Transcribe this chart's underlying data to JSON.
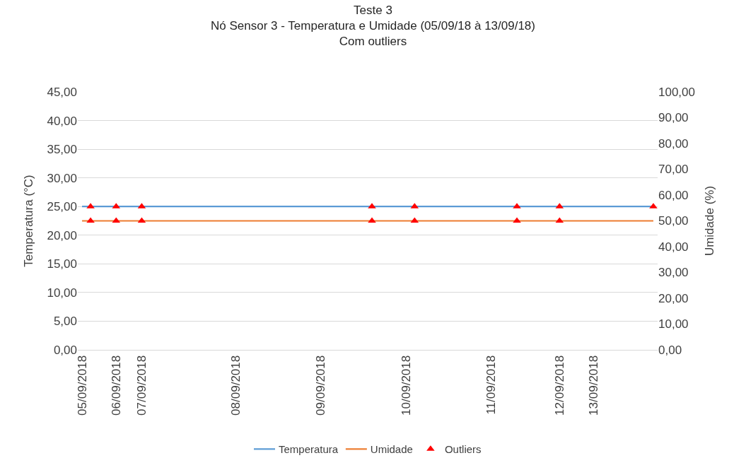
{
  "chart_data": {
    "type": "line",
    "title": "Teste 3\nNó Sensor 3 - Temperatura e Umidade (05/09/18 à 13/09/18)\nCom outliers",
    "ylabel": "Temperatura (°C)",
    "y2label": "Umidade (%)",
    "categories": [
      "05/09/2018",
      null,
      null,
      null,
      "06/09/2018",
      null,
      null,
      "07/09/2018",
      null,
      null,
      null,
      null,
      null,
      null,
      null,
      null,
      null,
      null,
      "08/09/2018",
      null,
      null,
      null,
      null,
      null,
      null,
      null,
      null,
      null,
      "09/09/2018",
      null,
      null,
      null,
      null,
      null,
      null,
      null,
      null,
      null,
      "10/09/2018",
      null,
      null,
      null,
      null,
      null,
      null,
      null,
      null,
      null,
      "11/09/2018",
      null,
      null,
      null,
      null,
      null,
      null,
      null,
      "12/09/2018",
      null,
      null,
      null,
      "13/09/2018",
      null,
      null,
      null,
      null,
      null,
      null,
      null
    ],
    "series": [
      {
        "name": "Temperatura",
        "color": "#5b9bd5",
        "line_style": "solid",
        "values": [
          25,
          25,
          25,
          25,
          25,
          25,
          25,
          25,
          25,
          25,
          25,
          25,
          25,
          25,
          25,
          25,
          25,
          25,
          25,
          25,
          25,
          25,
          25,
          25,
          25,
          25,
          25,
          25,
          25,
          25,
          25,
          25,
          25,
          25,
          25,
          25,
          25,
          25,
          25,
          25,
          25,
          25,
          25,
          25,
          25,
          25,
          25,
          25,
          25,
          25,
          25,
          25,
          25,
          25,
          25,
          25,
          25,
          25,
          25,
          25,
          25,
          25,
          25,
          25,
          25,
          25,
          25,
          25
        ]
      },
      {
        "name": "Umidade",
        "axis": "y2",
        "color": "#ed7d31",
        "line_style": "solid",
        "values": [
          50,
          50,
          50,
          50,
          50,
          50,
          50,
          50,
          50,
          50,
          50,
          50,
          50,
          50,
          50,
          50,
          50,
          50,
          50,
          50,
          50,
          50,
          50,
          50,
          50,
          50,
          50,
          50,
          50,
          50,
          50,
          50,
          50,
          50,
          50,
          50,
          50,
          50,
          50,
          50,
          50,
          50,
          50,
          50,
          50,
          50,
          50,
          50,
          50,
          50,
          50,
          50,
          50,
          50,
          50,
          50,
          50,
          50,
          50,
          50,
          50,
          50,
          50,
          50,
          50,
          50,
          50,
          50
        ]
      },
      {
        "name": "Outliers",
        "type": "scatter",
        "marker": "triangle",
        "color": "#ff0000",
        "values": [
          null,
          25,
          null,
          null,
          25,
          null,
          null,
          25,
          null,
          null,
          null,
          null,
          null,
          null,
          null,
          null,
          null,
          null,
          null,
          null,
          null,
          null,
          null,
          null,
          null,
          null,
          null,
          null,
          null,
          null,
          null,
          null,
          null,
          null,
          25,
          null,
          null,
          null,
          null,
          25,
          null,
          null,
          null,
          null,
          null,
          null,
          null,
          null,
          null,
          null,
          null,
          25,
          null,
          null,
          null,
          null,
          25,
          null,
          null,
          null,
          null,
          null,
          null,
          null,
          null,
          null,
          null,
          25
        ]
      },
      {
        "type": "scatter",
        "marker": "triangle",
        "axis": "y2",
        "color": "#ff0000",
        "values": [
          null,
          50,
          null,
          null,
          50,
          null,
          null,
          50,
          null,
          null,
          null,
          null,
          null,
          null,
          null,
          null,
          null,
          null,
          null,
          null,
          null,
          null,
          null,
          null,
          null,
          null,
          null,
          null,
          null,
          null,
          null,
          null,
          null,
          null,
          50,
          null,
          null,
          null,
          null,
          50,
          null,
          null,
          null,
          null,
          null,
          null,
          null,
          null,
          null,
          null,
          null,
          50,
          null,
          null,
          null,
          null,
          50,
          null,
          null,
          null,
          null,
          null,
          null,
          null,
          null,
          null,
          null,
          null
        ]
      }
    ],
    "ylim": [
      0,
      45
    ],
    "yticks": [
      {
        "value": 0,
        "label": "0,00"
      },
      {
        "value": 5,
        "label": "5,00"
      },
      {
        "value": 10,
        "label": "10,00"
      },
      {
        "value": 15,
        "label": "15,00"
      },
      {
        "value": 20,
        "label": "20,00"
      },
      {
        "value": 25,
        "label": "25,00"
      },
      {
        "value": 30,
        "label": "30,00"
      },
      {
        "value": 35,
        "label": "35,00"
      },
      {
        "value": 40,
        "label": "40,00"
      },
      {
        "value": 45,
        "label": "45,00"
      }
    ],
    "y2lim": [
      0,
      100
    ],
    "y2ticks": [
      {
        "value": 0,
        "label": "0,00"
      },
      {
        "value": 10,
        "label": "10,00"
      },
      {
        "value": 20,
        "label": "20,00"
      },
      {
        "value": 30,
        "label": "30,00"
      },
      {
        "value": 40,
        "label": "40,00"
      },
      {
        "value": 50,
        "label": "50,00"
      },
      {
        "value": 60,
        "label": "60,00"
      },
      {
        "value": 70,
        "label": "70,00"
      },
      {
        "value": 80,
        "label": "80,00"
      },
      {
        "value": 90,
        "label": "90,00"
      },
      {
        "value": 100,
        "label": "100,00"
      }
    ],
    "grid": "y",
    "legend": "bottom"
  }
}
